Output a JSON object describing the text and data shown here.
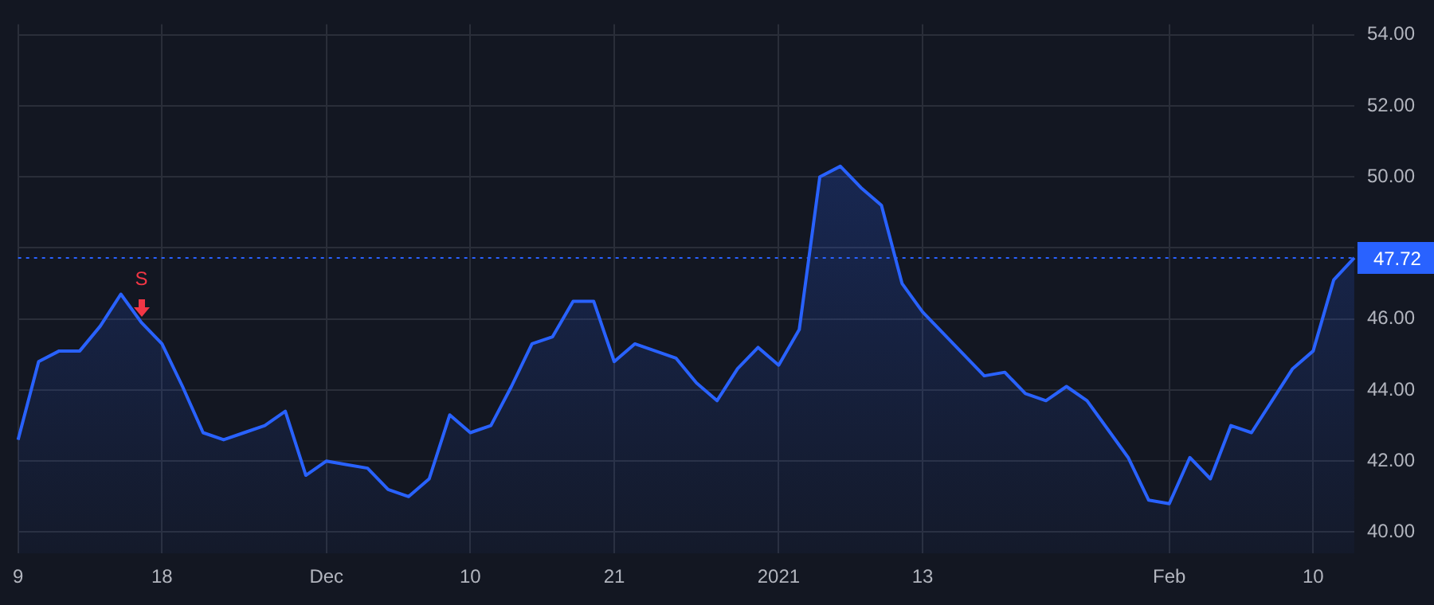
{
  "chart_data": {
    "type": "area",
    "categories": [
      "9",
      null,
      null,
      null,
      null,
      null,
      null,
      "18",
      null,
      null,
      null,
      null,
      null,
      null,
      null,
      "Dec",
      null,
      null,
      null,
      null,
      null,
      null,
      "10",
      null,
      null,
      null,
      null,
      null,
      null,
      "21",
      null,
      null,
      null,
      null,
      null,
      null,
      null,
      "2021",
      null,
      null,
      null,
      null,
      null,
      null,
      "13",
      null,
      null,
      null,
      null,
      null,
      null,
      null,
      null,
      null,
      null,
      null,
      "Feb",
      null,
      null,
      null,
      null,
      null,
      null,
      "10",
      null,
      null
    ],
    "values": [
      42.6,
      44.8,
      45.1,
      45.1,
      45.8,
      46.7,
      45.9,
      45.3,
      44.1,
      42.8,
      42.6,
      42.8,
      43.0,
      43.4,
      41.6,
      42.0,
      41.9,
      41.8,
      41.2,
      41.0,
      41.5,
      43.3,
      42.8,
      43.0,
      44.1,
      45.3,
      45.5,
      46.5,
      46.5,
      44.8,
      45.3,
      45.1,
      44.9,
      44.2,
      43.7,
      44.6,
      45.2,
      44.7,
      45.7,
      50.0,
      50.3,
      49.7,
      49.2,
      47.0,
      46.2,
      45.6,
      45.0,
      44.4,
      44.5,
      43.9,
      43.7,
      44.1,
      43.7,
      42.9,
      42.1,
      40.9,
      40.8,
      42.1,
      41.5,
      43.0,
      42.8,
      43.7,
      44.6,
      45.1,
      47.1,
      47.72
    ],
    "color": "#2962ff",
    "ylim": [
      39.4,
      54.3
    ],
    "yticks": [
      {
        "value": 40,
        "label": "40.00"
      },
      {
        "value": 42,
        "label": "42.00"
      },
      {
        "value": 44,
        "label": "44.00"
      },
      {
        "value": 46,
        "label": "46.00"
      },
      {
        "value": 48,
        "label": null
      },
      {
        "value": 50,
        "label": "50.00"
      },
      {
        "value": 52,
        "label": "52.00"
      },
      {
        "value": 54,
        "label": "54.00"
      }
    ],
    "grid": true,
    "ref_lines": [
      {
        "axis": "y",
        "value": 47.72,
        "label": "47.72",
        "color": "#2962ff",
        "line_style": "dotted"
      }
    ],
    "annotations": [
      {
        "text": "S",
        "y": 45.9
      }
    ]
  }
}
